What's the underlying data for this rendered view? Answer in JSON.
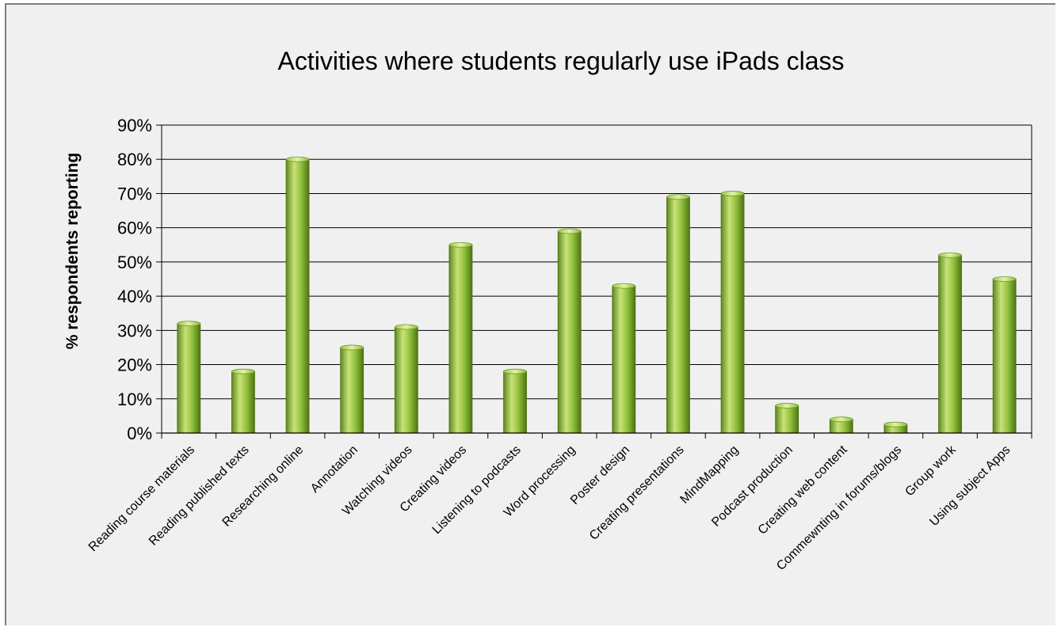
{
  "chart_data": {
    "type": "bar",
    "title": "Activities where students regularly use iPads class",
    "xlabel": "",
    "ylabel": "% respondents reporting",
    "ylim": [
      0,
      90
    ],
    "yticks": [
      "0%",
      "10%",
      "20%",
      "30%",
      "40%",
      "50%",
      "60%",
      "70%",
      "80%",
      "90%"
    ],
    "grid": true,
    "legend": "none",
    "categories": [
      "Reading course materials",
      "Reading published texts",
      "Researching online",
      "Annotation",
      "Watching videos",
      "Creating videos",
      "Listening to podcasts",
      "Word processing",
      "Poster design",
      "Creating presentations",
      "MindMapping",
      "Podcast production",
      "Creating web content",
      "Commewnting in forums/blogs",
      "Group work",
      "Using subject Apps"
    ],
    "values": [
      32,
      18,
      80,
      25,
      31,
      55,
      18,
      59,
      43,
      69,
      70,
      8,
      4,
      2.5,
      52,
      45
    ],
    "colors": {
      "bar_light": "#c9e27a",
      "bar_mid": "#92c13c",
      "bar_dark": "#5f8a1e",
      "gridline": "#000000",
      "background": "#f0f0f0"
    }
  }
}
